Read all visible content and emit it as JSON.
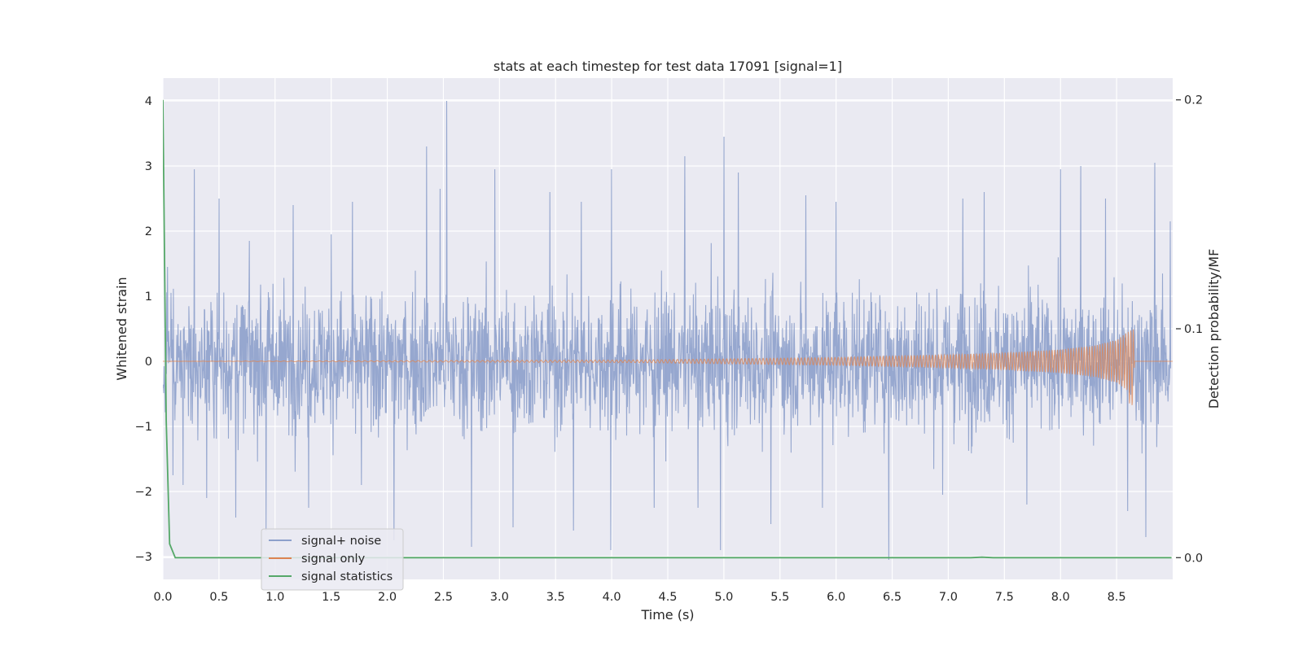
{
  "chart_data": {
    "type": "line",
    "title": "stats at each timestep for test data 17091 [signal=1]",
    "xlabel": "Time (s)",
    "ylabel": "Whitened strain",
    "y2label": "Detection probability/MF",
    "xlim": [
      0.0,
      9.0
    ],
    "ylim": [
      -3.35,
      4.35
    ],
    "y2lim": [
      -0.0095,
      0.2095
    ],
    "x_ticks": [
      "0.0",
      "0.5",
      "1.0",
      "1.5",
      "2.0",
      "2.5",
      "3.0",
      "3.5",
      "4.0",
      "4.5",
      "5.0",
      "5.5",
      "6.0",
      "6.5",
      "7.0",
      "7.5",
      "8.0",
      "8.5"
    ],
    "y_ticks": [
      "−3",
      "−2",
      "−1",
      "0",
      "1",
      "2",
      "3",
      "4"
    ],
    "y2_ticks": [
      "0.0",
      "0.1",
      "0.2"
    ],
    "grid": true,
    "legend_position": "lower-left",
    "series": [
      {
        "name": "signal+ noise",
        "color": "#8da0cb",
        "axis": "left",
        "description_peaks": [
          {
            "x": 0.04,
            "y": 1.45
          },
          {
            "x": 0.09,
            "y": -1.75
          },
          {
            "x": 0.18,
            "y": 2.4
          },
          {
            "x": 0.18,
            "y": -1.9
          },
          {
            "x": 0.28,
            "y": 2.95
          },
          {
            "x": 0.39,
            "y": -2.1
          },
          {
            "x": 0.5,
            "y": 2.5
          },
          {
            "x": 0.65,
            "y": -2.4
          },
          {
            "x": 0.77,
            "y": 1.85
          },
          {
            "x": 0.92,
            "y": -2.6
          },
          {
            "x": 1.16,
            "y": 2.4
          },
          {
            "x": 1.3,
            "y": -2.25
          },
          {
            "x": 1.5,
            "y": 1.95
          },
          {
            "x": 1.69,
            "y": 2.45
          },
          {
            "x": 1.77,
            "y": -1.9
          },
          {
            "x": 2.06,
            "y": -2.75
          },
          {
            "x": 2.35,
            "y": 3.3
          },
          {
            "x": 2.47,
            "y": 2.65
          },
          {
            "x": 2.53,
            "y": 4.0
          },
          {
            "x": 2.75,
            "y": -2.85
          },
          {
            "x": 2.96,
            "y": 2.95
          },
          {
            "x": 3.12,
            "y": -2.55
          },
          {
            "x": 3.45,
            "y": 2.6
          },
          {
            "x": 3.66,
            "y": -2.6
          },
          {
            "x": 3.73,
            "y": 2.45
          },
          {
            "x": 4.0,
            "y": 2.95
          },
          {
            "x": 3.99,
            "y": -2.9
          },
          {
            "x": 4.38,
            "y": -2.25
          },
          {
            "x": 4.65,
            "y": 3.15
          },
          {
            "x": 4.77,
            "y": -2.25
          },
          {
            "x": 5.0,
            "y": 3.45
          },
          {
            "x": 4.97,
            "y": -2.9
          },
          {
            "x": 5.13,
            "y": 2.9
          },
          {
            "x": 5.42,
            "y": -2.5
          },
          {
            "x": 5.73,
            "y": 2.55
          },
          {
            "x": 5.88,
            "y": -2.25
          },
          {
            "x": 6.0,
            "y": 2.45
          },
          {
            "x": 6.47,
            "y": -3.05
          },
          {
            "x": 6.95,
            "y": -2.05
          },
          {
            "x": 7.13,
            "y": 2.5
          },
          {
            "x": 7.32,
            "y": 2.6
          },
          {
            "x": 7.7,
            "y": -2.2
          },
          {
            "x": 8.0,
            "y": 2.95
          },
          {
            "x": 8.18,
            "y": 3.0
          },
          {
            "x": 8.4,
            "y": 2.5
          },
          {
            "x": 8.6,
            "y": -2.3
          },
          {
            "x": 8.76,
            "y": -2.7
          },
          {
            "x": 8.84,
            "y": 3.05
          },
          {
            "x": 8.98,
            "y": 2.15
          }
        ]
      },
      {
        "name": "signal only",
        "color": "#dd8452",
        "axis": "left",
        "envelope": [
          {
            "x": 0.0,
            "y": 0.0
          },
          {
            "x": 4.2,
            "y": 0.02
          },
          {
            "x": 6.0,
            "y": 0.06
          },
          {
            "x": 7.0,
            "y": 0.1
          },
          {
            "x": 7.5,
            "y": 0.13
          },
          {
            "x": 8.0,
            "y": 0.18
          },
          {
            "x": 8.3,
            "y": 0.24
          },
          {
            "x": 8.5,
            "y": 0.33
          },
          {
            "x": 8.6,
            "y": 0.45
          },
          {
            "x": 8.65,
            "y": 0.5
          },
          {
            "x": 8.66,
            "y": 0.0
          },
          {
            "x": 9.0,
            "y": 0.0
          }
        ],
        "lower_peak": -0.7
      },
      {
        "name": "signal statistics",
        "color": "#55a868",
        "axis": "right",
        "points": [
          {
            "x": 0.0,
            "y": 0.2
          },
          {
            "x": 0.03,
            "y": 0.06
          },
          {
            "x": 0.06,
            "y": 0.006
          },
          {
            "x": 0.11,
            "y": 0.0
          },
          {
            "x": 7.2,
            "y": 0.0
          },
          {
            "x": 7.3,
            "y": 0.0002
          },
          {
            "x": 7.4,
            "y": 0.0
          },
          {
            "x": 8.99,
            "y": 0.0
          }
        ]
      }
    ]
  }
}
